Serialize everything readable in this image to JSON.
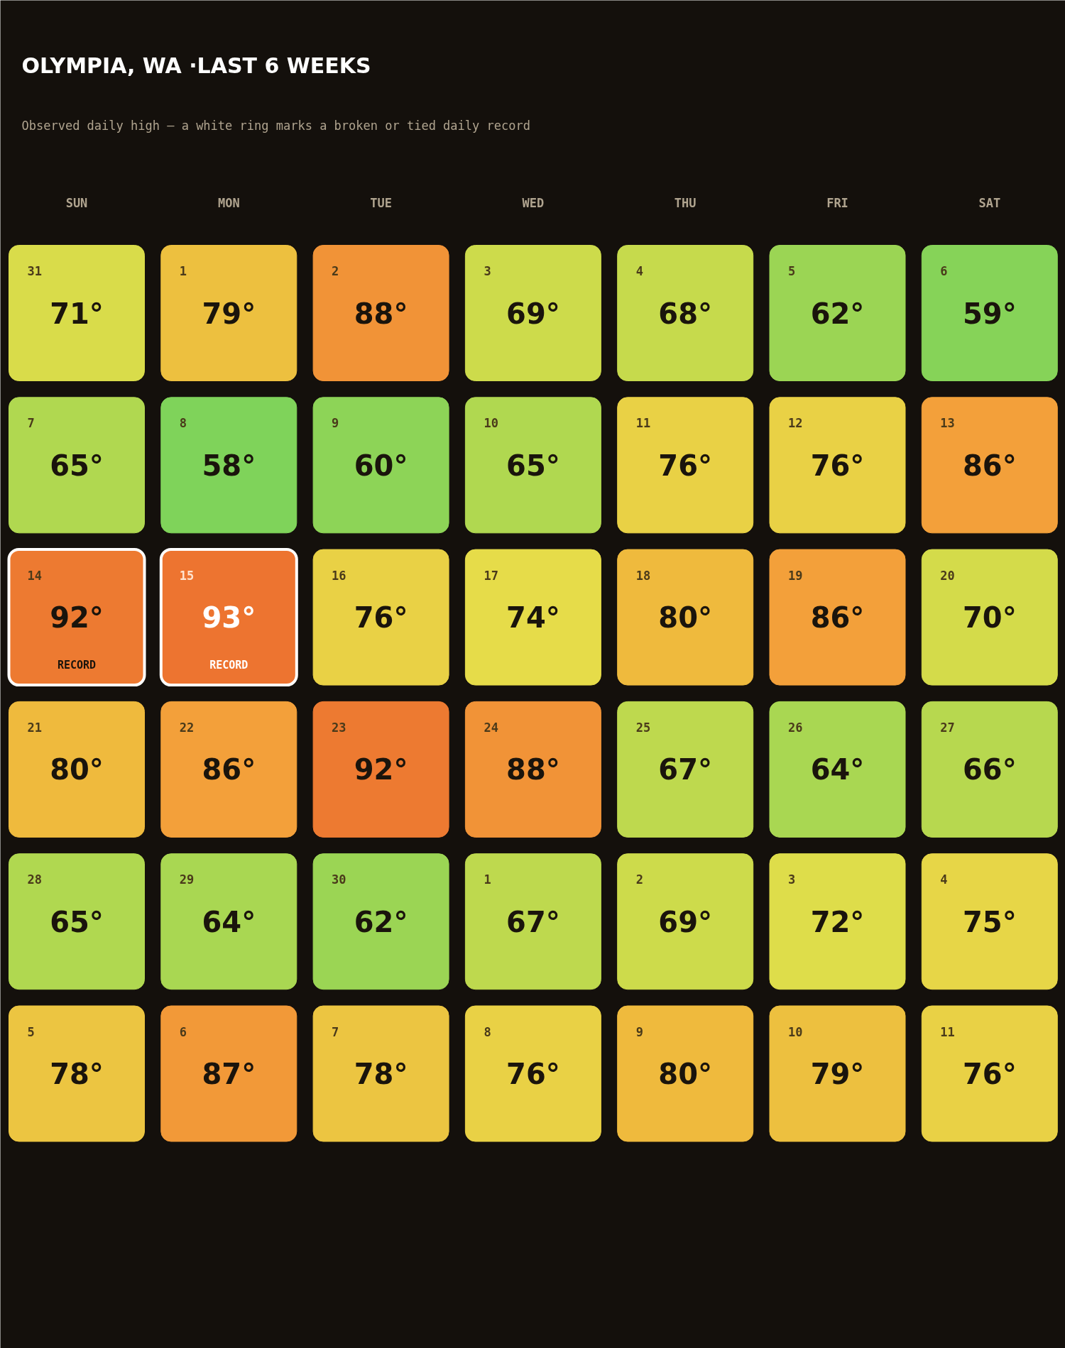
{
  "chart_data": {
    "type": "heatmap",
    "title": "OLYMPIA, WA ·LAST 6 WEEKS",
    "subtitle": "Observed daily high — a white ring marks a broken or tied daily record",
    "categories": [
      "SUN",
      "MON",
      "TUE",
      "WED",
      "THU",
      "FRI",
      "SAT"
    ],
    "y_categories": [
      null,
      null,
      null,
      null,
      null,
      null
    ],
    "cells": [
      [
        71,
        79,
        88,
        69,
        68,
        62,
        59
      ],
      [
        65,
        58,
        60,
        65,
        76,
        76,
        86
      ],
      [
        92,
        93,
        76,
        74,
        80,
        86,
        70
      ],
      [
        80,
        86,
        92,
        88,
        67,
        64,
        66
      ],
      [
        65,
        64,
        62,
        67,
        69,
        72,
        75
      ],
      [
        78,
        87,
        78,
        76,
        80,
        79,
        76
      ]
    ],
    "cell_labels": [
      [
        "71°",
        "79°",
        "88°",
        "69°",
        "68°",
        "62°",
        "59°"
      ],
      [
        "65°",
        "58°",
        "60°",
        "65°",
        "76°",
        "76°",
        "86°"
      ],
      [
        "92°\nRECORD",
        "93°\nRECORD",
        "76°",
        "74°",
        "80°",
        "86°",
        "70°"
      ],
      [
        "80°",
        "86°",
        "92°",
        "88°",
        "67°",
        "64°",
        "66°"
      ],
      [
        "65°",
        "64°",
        "62°",
        "67°",
        "69°",
        "72°",
        "75°"
      ],
      [
        "78°",
        "87°",
        "78°",
        "76°",
        "80°",
        "79°",
        "76°"
      ]
    ],
    "annotations": [
      "31",
      "1",
      "2",
      "3",
      "4",
      "5",
      "6",
      "7",
      "8",
      "9",
      "10",
      "11",
      "12",
      "13",
      "14",
      "15",
      "16",
      "17",
      "18",
      "19",
      "20",
      "21",
      "22",
      "23",
      "24",
      "25",
      "26",
      "27",
      "28",
      "29",
      "30",
      "1",
      "2",
      "3",
      "4",
      "5",
      "6",
      "7",
      "8",
      "9",
      "10",
      "11"
    ]
  }
}
